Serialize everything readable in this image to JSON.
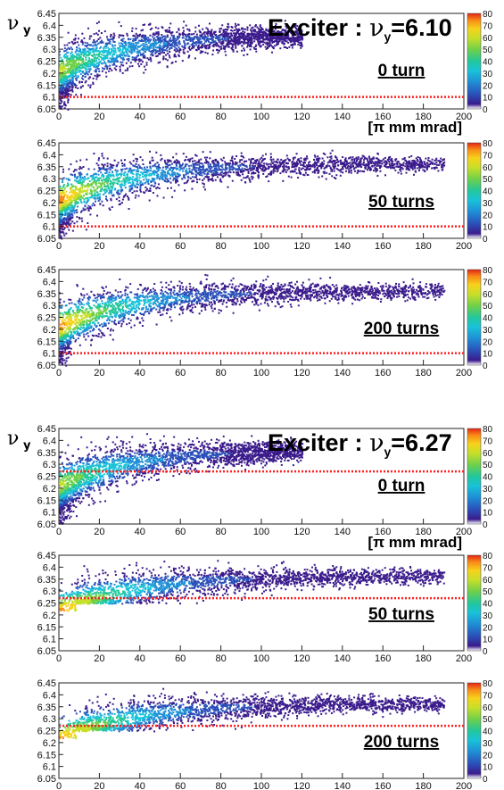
{
  "chart_data": [
    {
      "type": "heatmap",
      "group": 0,
      "title_prefix": "Exciter : ",
      "nu_label": "ν",
      "nu_sub": "y",
      "title_value": "=6.10",
      "annotation": "0 turn",
      "unit": "[π mm mrad]",
      "resonance": 6.1,
      "turns": 0,
      "xlim": [
        0,
        200
      ],
      "ylim": [
        6.05,
        6.45
      ],
      "zlim": [
        0,
        80
      ]
    },
    {
      "type": "heatmap",
      "group": 0,
      "annotation": "50 turns",
      "resonance": 6.1,
      "turns": 50,
      "xlim": [
        0,
        200
      ],
      "ylim": [
        6.05,
        6.45
      ],
      "zlim": [
        0,
        80
      ]
    },
    {
      "type": "heatmap",
      "group": 0,
      "annotation": "200 turns",
      "resonance": 6.1,
      "turns": 200,
      "xlim": [
        0,
        200
      ],
      "ylim": [
        6.05,
        6.45
      ],
      "zlim": [
        0,
        80
      ]
    },
    {
      "type": "heatmap",
      "group": 1,
      "title_prefix": "Exciter : ",
      "nu_label": "ν",
      "nu_sub": "y",
      "title_value": "=6.27",
      "annotation": "0 turn",
      "unit": "[π mm mrad]",
      "resonance": 6.27,
      "turns": 0,
      "xlim": [
        0,
        200
      ],
      "ylim": [
        6.05,
        6.45
      ],
      "zlim": [
        0,
        80
      ]
    },
    {
      "type": "heatmap",
      "group": 1,
      "annotation": "50 turns",
      "resonance": 6.27,
      "turns": 50,
      "xlim": [
        0,
        200
      ],
      "ylim": [
        6.05,
        6.45
      ],
      "zlim": [
        0,
        80
      ]
    },
    {
      "type": "heatmap",
      "group": 1,
      "annotation": "200 turns",
      "resonance": 6.27,
      "turns": 200,
      "xlim": [
        0,
        200
      ],
      "ylim": [
        6.05,
        6.45
      ],
      "zlim": [
        0,
        80
      ]
    }
  ],
  "x_ticks": [
    0,
    20,
    40,
    60,
    80,
    100,
    120,
    140,
    160,
    180,
    200
  ],
  "y_ticks": [
    6.05,
    6.1,
    6.15,
    6.2,
    6.25,
    6.3,
    6.35,
    6.4,
    6.45
  ],
  "z_ticks": [
    0,
    10,
    20,
    30,
    40,
    50,
    60,
    70,
    80
  ],
  "palette": [
    "#3b1b8c",
    "#2a4fb8",
    "#1f8fd6",
    "#19c2d8",
    "#23c79a",
    "#6fd04a",
    "#c6df2a",
    "#f7d21b",
    "#f88a16",
    "#e52315"
  ],
  "resonance_line_color": "#ff2020"
}
